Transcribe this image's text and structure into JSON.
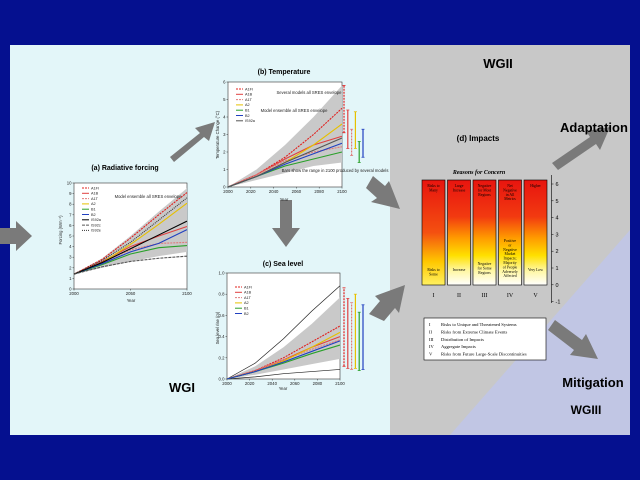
{
  "wg_labels": {
    "wg1": "WGI",
    "wg2": "WGII",
    "wg3": "WGIII",
    "adaptation": "Adaptation",
    "mitigation": "Mitigation"
  },
  "colors": {
    "background": "#05108f",
    "panel_left": "#e3f6f9",
    "panel_right": "#c8c8c8",
    "wg3_triangle": "#c1c6e4",
    "arrow": "#7a7a7a"
  },
  "panels": {
    "forcing": {
      "title": "(a) Radiative forcing",
      "ylabel": "Forcing (Wm⁻²)",
      "xlabel": "Year",
      "annotation": "Model ensemble all SRES envelope"
    },
    "temperature": {
      "title": "(b) Temperature",
      "ylabel": "Temperature Change (°C)",
      "xlabel": "Year",
      "annotation_top": "Several models all SRES envelope",
      "annotation_mid": "Model ensemble all SRES envelope",
      "annotation_right": "Bars show the range in 2100 produced by several models"
    },
    "sealevel": {
      "title": "(c) Sea level",
      "ylabel": "Sea level rise (m)",
      "xlabel": "Year"
    },
    "impacts": {
      "title": "(d) Impacts",
      "subtitle": "Reasons for Concern",
      "columns": [
        {
          "numeral": "I",
          "top": "Risks to Many",
          "bottom": "Risks to Some"
        },
        {
          "numeral": "II",
          "top": "Large Increase",
          "bottom": "Increase"
        },
        {
          "numeral": "III",
          "top": "Negative for Most Regions",
          "bottom": "Negative for Some Regions"
        },
        {
          "numeral": "IV",
          "top": "Net Negative in All Metrics",
          "bottom": "Positive or Negative Market Impacts; Majority of People Adversely Affected"
        },
        {
          "numeral": "V",
          "top": "Higher",
          "bottom": "Very Low"
        }
      ],
      "y_ticks": [
        "6",
        "5",
        "4",
        "3",
        "2",
        "1",
        "0",
        "-1"
      ],
      "legend": [
        {
          "num": "I",
          "text": "Risks to Unique and Threatened Systems"
        },
        {
          "num": "II",
          "text": "Risks from Extreme Climate Events"
        },
        {
          "num": "III",
          "text": "Distribution of Impacts"
        },
        {
          "num": "IV",
          "text": "Aggregate Impacts"
        },
        {
          "num": "V",
          "text": "Risks from Future Large-Scale Discontinuities"
        }
      ]
    }
  },
  "chart_data": [
    {
      "type": "line",
      "title": "(a) Radiative forcing",
      "xlabel": "Year",
      "ylabel": "Forcing (Wm⁻²)",
      "xlim": [
        2000,
        2100
      ],
      "ylim": [
        0,
        10
      ],
      "x_ticks": [
        "2000",
        "2050",
        "2100"
      ],
      "y_ticks": [
        "0",
        "1",
        "2",
        "3",
        "4",
        "5",
        "6",
        "7",
        "8",
        "9",
        "10"
      ],
      "x": [
        2000,
        2025,
        2050,
        2075,
        2100
      ],
      "envelope": {
        "low": [
          1.4,
          2.0,
          2.6,
          3.1,
          3.5
        ],
        "high": [
          1.4,
          2.9,
          5.0,
          7.3,
          9.5
        ]
      },
      "series": [
        {
          "name": "A1FI",
          "color": "#e0201e",
          "dash": "2,1",
          "values": [
            1.4,
            2.8,
            4.8,
            7.0,
            9.1
          ]
        },
        {
          "name": "A1B",
          "color": "#e04040",
          "dash": "",
          "values": [
            1.4,
            2.6,
            4.0,
            5.0,
            5.9
          ]
        },
        {
          "name": "A1T",
          "color": "#e07a7a",
          "dash": "2,1",
          "values": [
            1.4,
            2.5,
            3.7,
            4.3,
            4.4
          ]
        },
        {
          "name": "A2",
          "color": "#e6c000",
          "dash": "",
          "values": [
            1.4,
            2.5,
            4.2,
            6.1,
            8.1
          ]
        },
        {
          "name": "B1",
          "color": "#2aa02a",
          "dash": "",
          "values": [
            1.4,
            2.3,
            3.3,
            3.9,
            4.1
          ]
        },
        {
          "name": "B2",
          "color": "#2040c0",
          "dash": "",
          "values": [
            1.4,
            2.4,
            3.5,
            4.3,
            5.6
          ]
        },
        {
          "name": "IS92a",
          "color": "#000000",
          "dash": "",
          "values": [
            1.4,
            2.5,
            3.8,
            5.1,
            6.4
          ]
        },
        {
          "name": "IS92c",
          "color": "#555555",
          "dash": "3,1",
          "values": [
            1.4,
            2.1,
            2.6,
            2.9,
            3.1
          ]
        },
        {
          "name": "IS92e",
          "color": "#333333",
          "dash": "1,1",
          "values": [
            1.4,
            2.7,
            4.4,
            6.5,
            8.6
          ]
        }
      ]
    },
    {
      "type": "line",
      "title": "(b) Temperature",
      "xlabel": "Year",
      "ylabel": "Temperature Change (°C)",
      "xlim": [
        2000,
        2100
      ],
      "ylim": [
        0,
        6
      ],
      "x_ticks": [
        "2000",
        "2020",
        "2040",
        "2060",
        "2080",
        "2100"
      ],
      "y_ticks": [
        "0",
        "1",
        "2",
        "3",
        "4",
        "5",
        "6"
      ],
      "x": [
        2000,
        2025,
        2050,
        2075,
        2100
      ],
      "envelope": {
        "low": [
          0.0,
          0.4,
          0.8,
          1.2,
          1.4
        ],
        "high": [
          0.0,
          1.0,
          2.4,
          4.0,
          5.8
        ]
      },
      "series": [
        {
          "name": "A1FI",
          "color": "#e0201e",
          "dash": "2,1",
          "values": [
            0.0,
            0.7,
            1.7,
            3.0,
            4.5
          ]
        },
        {
          "name": "A1B",
          "color": "#e04040",
          "dash": "",
          "values": [
            0.0,
            0.7,
            1.6,
            2.4,
            2.9
          ]
        },
        {
          "name": "A1T",
          "color": "#e07a7a",
          "dash": "2,1",
          "values": [
            0.0,
            0.7,
            1.5,
            2.0,
            2.3
          ]
        },
        {
          "name": "A2",
          "color": "#e6c000",
          "dash": "",
          "values": [
            0.0,
            0.6,
            1.4,
            2.4,
            3.6
          ]
        },
        {
          "name": "B1",
          "color": "#2aa02a",
          "dash": "",
          "values": [
            0.0,
            0.6,
            1.2,
            1.6,
            2.0
          ]
        },
        {
          "name": "B2",
          "color": "#2040c0",
          "dash": "",
          "values": [
            0.0,
            0.6,
            1.3,
            1.9,
            2.5
          ]
        },
        {
          "name": "IS92a",
          "color": "#555555",
          "dash": "",
          "values": [
            0.0,
            0.6,
            1.4,
            2.1,
            2.8
          ]
        }
      ],
      "range_bars": [
        {
          "color": "#e0201e",
          "dash": "2,1",
          "min": 3.1,
          "max": 5.8
        },
        {
          "color": "#e04040",
          "dash": "",
          "min": 2.2,
          "max": 4.4
        },
        {
          "color": "#e07a7a",
          "dash": "2,1",
          "min": 1.8,
          "max": 3.3
        },
        {
          "color": "#e6c000",
          "dash": "",
          "min": 2.2,
          "max": 4.3
        },
        {
          "color": "#2aa02a",
          "dash": "",
          "min": 1.4,
          "max": 2.6
        },
        {
          "color": "#2040c0",
          "dash": "",
          "min": 1.7,
          "max": 3.3
        }
      ]
    },
    {
      "type": "line",
      "title": "(c) Sea level",
      "xlabel": "Year",
      "ylabel": "Sea level rise (m)",
      "xlim": [
        2000,
        2100
      ],
      "ylim": [
        0,
        1.0
      ],
      "x_ticks": [
        "2000",
        "2020",
        "2040",
        "2060",
        "2080",
        "2100"
      ],
      "y_ticks": [
        "0.0",
        "0.2",
        "0.4",
        "0.6",
        "0.8",
        "1.0"
      ],
      "x": [
        2000,
        2025,
        2050,
        2075,
        2100
      ],
      "envelope": {
        "low": [
          0.0,
          0.04,
          0.09,
          0.14,
          0.19
        ],
        "high": [
          0.0,
          0.12,
          0.3,
          0.52,
          0.77
        ]
      },
      "outer": {
        "low": [
          0.0,
          0.02,
          0.05,
          0.07,
          0.09
        ],
        "high": [
          0.0,
          0.15,
          0.38,
          0.64,
          0.88
        ]
      },
      "series": [
        {
          "name": "A1FI",
          "color": "#e0201e",
          "dash": "2,1",
          "values": [
            0.0,
            0.08,
            0.2,
            0.35,
            0.5
          ]
        },
        {
          "name": "A1B",
          "color": "#e04040",
          "dash": "",
          "values": [
            0.0,
            0.08,
            0.18,
            0.3,
            0.4
          ]
        },
        {
          "name": "A1T",
          "color": "#e07a7a",
          "dash": "2,1",
          "values": [
            0.0,
            0.08,
            0.18,
            0.28,
            0.37
          ]
        },
        {
          "name": "A2",
          "color": "#e6c000",
          "dash": "",
          "values": [
            0.0,
            0.07,
            0.17,
            0.3,
            0.44
          ]
        },
        {
          "name": "B1",
          "color": "#2aa02a",
          "dash": "",
          "values": [
            0.0,
            0.07,
            0.15,
            0.24,
            0.32
          ]
        },
        {
          "name": "B2",
          "color": "#2040c0",
          "dash": "",
          "values": [
            0.0,
            0.07,
            0.16,
            0.26,
            0.36
          ]
        }
      ],
      "range_bars": [
        {
          "color": "#e0201e",
          "dash": "2,1",
          "min": 0.12,
          "max": 0.86
        },
        {
          "color": "#e04040",
          "dash": "",
          "min": 0.1,
          "max": 0.76
        },
        {
          "color": "#e07a7a",
          "dash": "2,1",
          "min": 0.09,
          "max": 0.72
        },
        {
          "color": "#e6c000",
          "dash": "",
          "min": 0.1,
          "max": 0.8
        },
        {
          "color": "#2aa02a",
          "dash": "",
          "min": 0.08,
          "max": 0.63
        },
        {
          "color": "#2040c0",
          "dash": "",
          "min": 0.09,
          "max": 0.7
        }
      ]
    }
  ]
}
